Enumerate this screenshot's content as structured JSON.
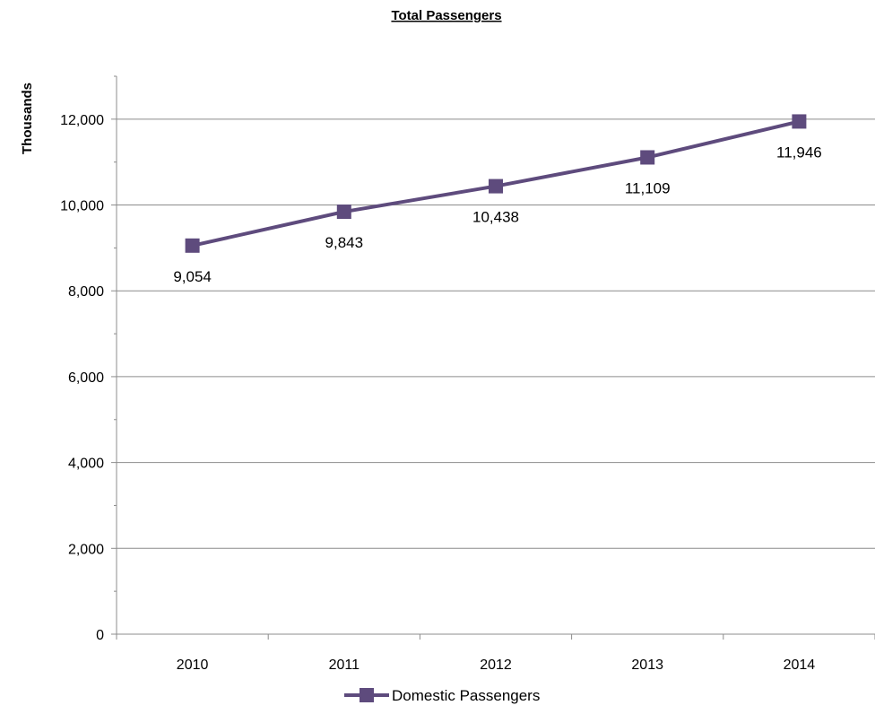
{
  "chart_data": {
    "type": "line",
    "title": "Total Passengers",
    "ylabel": "Thousands",
    "xlabel": "",
    "categories": [
      "2010",
      "2011",
      "2012",
      "2013",
      "2014"
    ],
    "series": [
      {
        "name": "Domestic Passengers",
        "values": [
          9054,
          9843,
          10438,
          11109,
          11946
        ],
        "data_labels": [
          "9,054",
          "9,843",
          "10,438",
          "11,109",
          "11,946"
        ],
        "color": "#5e4b7d"
      }
    ],
    "ylim": [
      0,
      13000
    ],
    "yticks": [
      0,
      2000,
      4000,
      6000,
      8000,
      10000,
      12000
    ],
    "ytick_labels": [
      "0",
      "2,000",
      "4,000",
      "6,000",
      "8,000",
      "10,000",
      "12,000"
    ],
    "grid": true,
    "legend_position": "bottom",
    "gridline_color": "#8c8c8c"
  }
}
